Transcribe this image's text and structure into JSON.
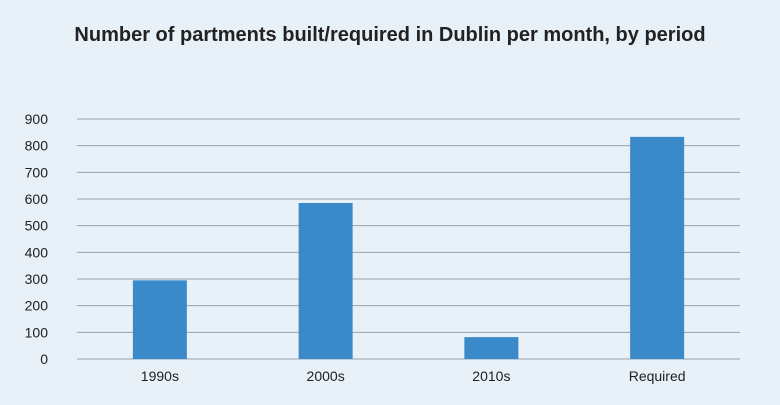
{
  "chart_data": {
    "type": "bar",
    "title": "Number of partments built/required in Dublin per month, by period",
    "categories": [
      "1990s",
      "2000s",
      "2010s",
      "Required"
    ],
    "values": [
      295,
      585,
      82,
      833
    ],
    "ylim": [
      0,
      900
    ],
    "yticks": [
      0,
      100,
      200,
      300,
      400,
      500,
      600,
      700,
      800,
      900
    ],
    "xlabel": "",
    "ylabel": "",
    "grid": true,
    "legend": "none",
    "bar_color": "#3a8ac9",
    "grid_color": "#9aa3ad"
  }
}
